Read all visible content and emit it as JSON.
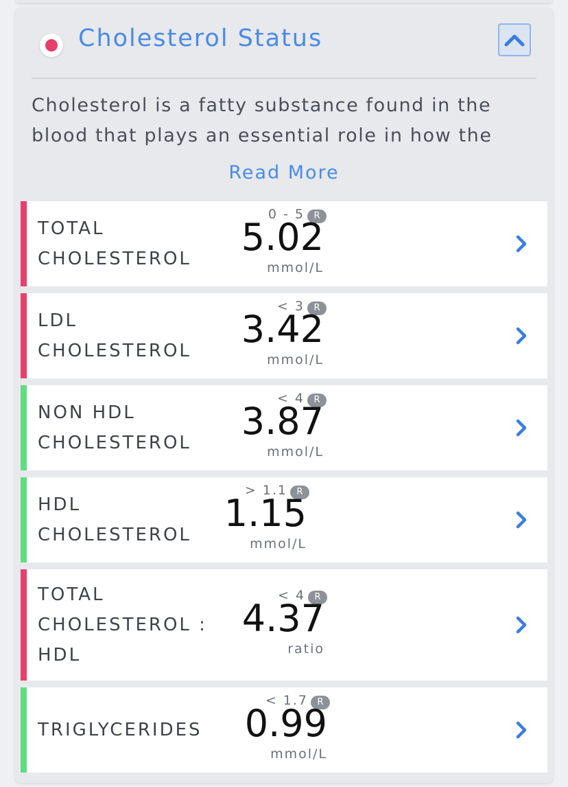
{
  "section": {
    "title": "Cholesterol Status",
    "description": "Cholesterol is a fatty substance found in the blood that plays an essential role in how the",
    "read_more": "Read More",
    "status_color": "#e8406e",
    "accent_color": "#4a8ae6"
  },
  "icons": {
    "collapse": "chevron-up-icon",
    "row_arrow": "chevron-right-icon",
    "reference_badge": "R"
  },
  "status_colors": {
    "high": "#e8406e",
    "ok": "#5fdd82"
  },
  "results": [
    {
      "label": "TOTAL\nCHOLESTEROL",
      "range": "0 - 5",
      "badge": "R",
      "value": "5.02",
      "unit": "mmol/L",
      "status": "high"
    },
    {
      "label": "LDL\nCHOLESTEROL",
      "range": "< 3",
      "badge": "R",
      "value": "3.42",
      "unit": "mmol/L",
      "status": "high"
    },
    {
      "label": "NON HDL\nCHOLESTEROL",
      "range": "< 4",
      "badge": "R",
      "value": "3.87",
      "unit": "mmol/L",
      "status": "ok"
    },
    {
      "label": "HDL\nCHOLESTEROL",
      "range": "> 1.1",
      "badge": "R",
      "value": "1.15",
      "unit": "mmol/L",
      "status": "ok"
    },
    {
      "label": "TOTAL\nCHOLESTEROL :\nHDL",
      "range": "< 4",
      "badge": "R",
      "value": "4.37",
      "unit": "ratio",
      "status": "high"
    },
    {
      "label": "TRIGLYCERIDES",
      "range": "< 1.7",
      "badge": "R",
      "value": "0.99",
      "unit": "mmol/L",
      "status": "ok"
    }
  ]
}
